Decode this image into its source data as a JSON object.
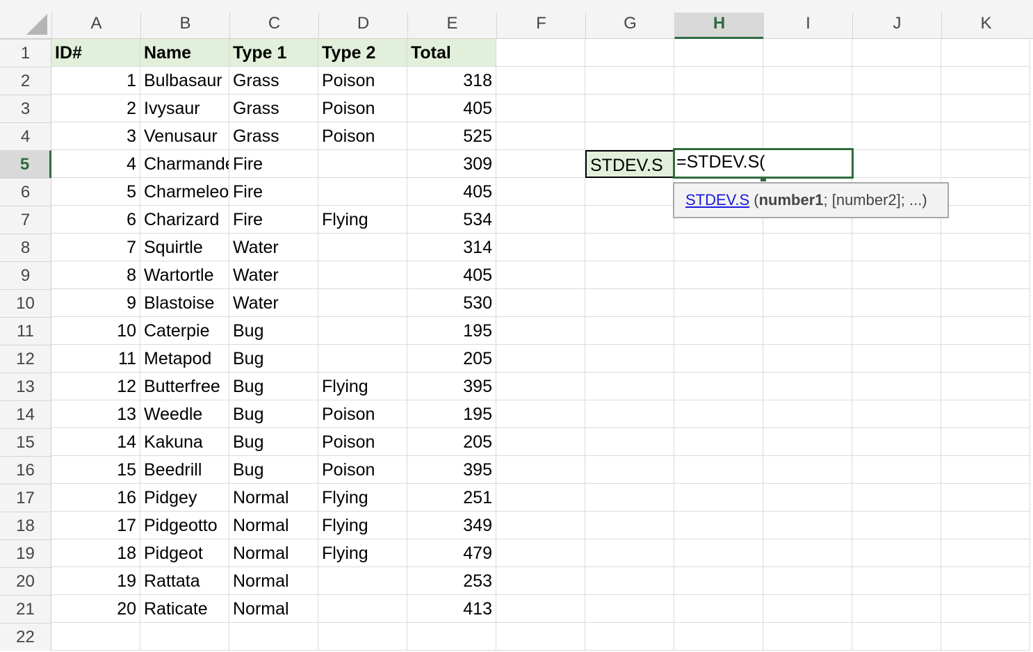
{
  "columns": [
    "A",
    "B",
    "C",
    "D",
    "E",
    "F",
    "G",
    "H",
    "I",
    "J",
    "K"
  ],
  "selected_column": "H",
  "selected_row": 5,
  "headers": [
    "ID#",
    "Name",
    "Type 1",
    "Type 2",
    "Total"
  ],
  "rows": [
    [
      1,
      "Bulbasaur",
      "Grass",
      "Poison",
      318
    ],
    [
      2,
      "Ivysaur",
      "Grass",
      "Poison",
      405
    ],
    [
      3,
      "Venusaur",
      "Grass",
      "Poison",
      525
    ],
    [
      4,
      "Charmander",
      "Fire",
      "",
      309
    ],
    [
      5,
      "Charmeleon",
      "Fire",
      "",
      405
    ],
    [
      6,
      "Charizard",
      "Fire",
      "Flying",
      534
    ],
    [
      7,
      "Squirtle",
      "Water",
      "",
      314
    ],
    [
      8,
      "Wartortle",
      "Water",
      "",
      405
    ],
    [
      9,
      "Blastoise",
      "Water",
      "",
      530
    ],
    [
      10,
      "Caterpie",
      "Bug",
      "",
      195
    ],
    [
      11,
      "Metapod",
      "Bug",
      "",
      205
    ],
    [
      12,
      "Butterfree",
      "Bug",
      "Flying",
      395
    ],
    [
      13,
      "Weedle",
      "Bug",
      "Poison",
      195
    ],
    [
      14,
      "Kakuna",
      "Bug",
      "Poison",
      205
    ],
    [
      15,
      "Beedrill",
      "Bug",
      "Poison",
      395
    ],
    [
      16,
      "Pidgey",
      "Normal",
      "Flying",
      251
    ],
    [
      17,
      "Pidgeotto",
      "Normal",
      "Flying",
      349
    ],
    [
      18,
      "Pidgeot",
      "Normal",
      "Flying",
      479
    ],
    [
      19,
      "Rattata",
      "Normal",
      "",
      253
    ],
    [
      20,
      "Raticate",
      "Normal",
      "",
      413
    ]
  ],
  "g5_label": "STDEV.S",
  "h5_formula": "=STDEV.S(",
  "tooltip": {
    "func": "STDEV.S",
    "open": " (",
    "arg1": "number1",
    "rest": "; [number2]; ...)"
  },
  "colors": {
    "header_fill": "#e2efda",
    "selection": "#2f6b3f",
    "link": "#1a1adf"
  }
}
